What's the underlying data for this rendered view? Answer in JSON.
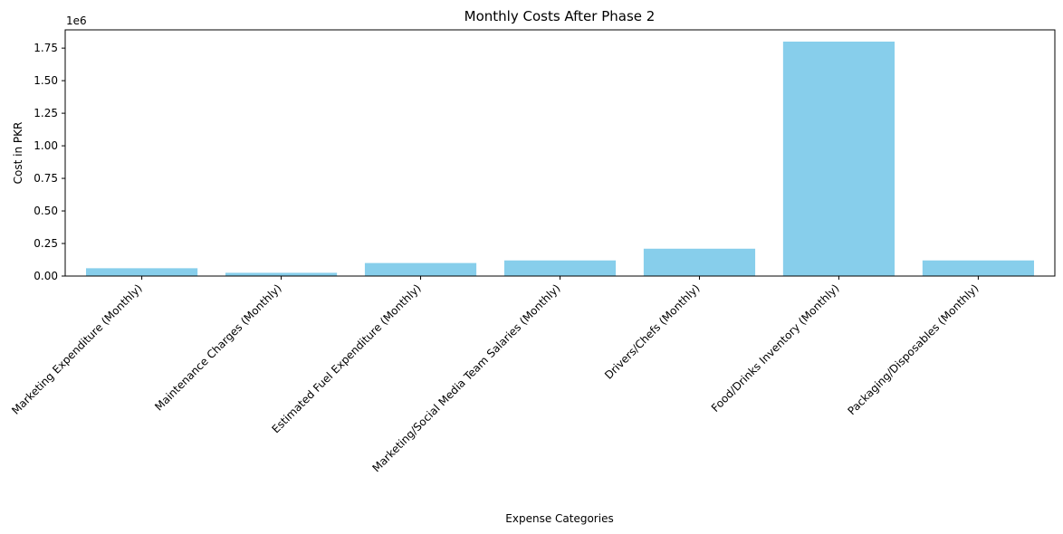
{
  "chart_data": {
    "type": "bar",
    "title": "Monthly Costs After Phase 2",
    "xlabel": "Expense Categories",
    "ylabel": "Cost in PKR",
    "offset_label": "1e6",
    "categories": [
      "Marketing Expenditure (Monthly)",
      "Maintenance Charges (Monthly)",
      "Estimated Fuel Expenditure (Monthly)",
      "Marketing/Social Media Team Salaries (Monthly)",
      "Drivers/Chefs (Monthly)",
      "Food/Drinks Inventory (Monthly)",
      "Packaging/Disposables (Monthly)"
    ],
    "values": [
      60000,
      25000,
      100000,
      120000,
      210000,
      1800000,
      120000
    ],
    "ylim": [
      0,
      1890000
    ],
    "yticks": [
      0,
      250000,
      500000,
      750000,
      1000000,
      1250000,
      1500000,
      1750000
    ],
    "ytick_labels": [
      "0.00",
      "0.25",
      "0.50",
      "0.75",
      "1.00",
      "1.25",
      "1.50",
      "1.75"
    ],
    "bar_color": "#87ceeb",
    "grid": false,
    "legend": "none"
  }
}
